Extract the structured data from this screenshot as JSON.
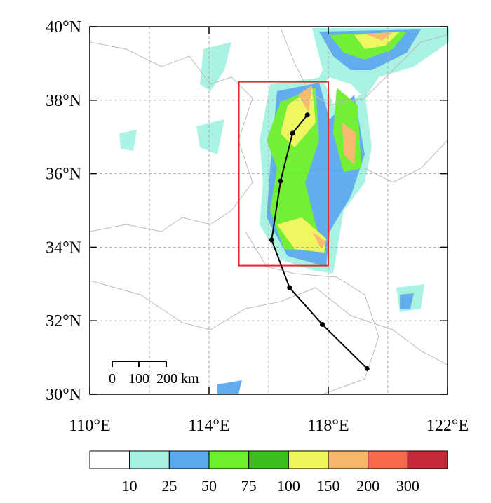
{
  "chart_data": {
    "type": "map",
    "xlim": [
      110,
      122
    ],
    "ylim": [
      30,
      40
    ],
    "xticks": [
      {
        "value": 110,
        "label": "110°E"
      },
      {
        "value": 114,
        "label": "114°E"
      },
      {
        "value": 118,
        "label": "118°E"
      },
      {
        "value": 122,
        "label": "122°E"
      }
    ],
    "yticks": [
      {
        "value": 30,
        "label": "30°N"
      },
      {
        "value": 32,
        "label": "32°N"
      },
      {
        "value": 34,
        "label": "34°N"
      },
      {
        "value": 36,
        "label": "36°N"
      },
      {
        "value": 38,
        "label": "38°N"
      },
      {
        "value": 40,
        "label": "40°N"
      }
    ],
    "xgrid": [
      112,
      114,
      116,
      118,
      120
    ],
    "grid": true,
    "box": {
      "lon": [
        115,
        118
      ],
      "lat": [
        33.5,
        38.5
      ],
      "color": "#e0282e"
    },
    "track": {
      "color": "#000000",
      "lon": [
        119.3,
        117.8,
        116.7,
        116.1,
        116.4,
        116.8,
        117.3
      ],
      "lat": [
        30.7,
        31.9,
        32.9,
        34.2,
        35.8,
        37.1,
        37.6
      ]
    },
    "scale_bar": {
      "labels": [
        "0",
        "100",
        "200 km"
      ]
    },
    "colorbar": {
      "levels": [
        10,
        25,
        50,
        75,
        100,
        150,
        200,
        300
      ],
      "colors": [
        "#ffffff",
        "#a6f2e0",
        "#5aa9ee",
        "#6cf02c",
        "#3cbf1e",
        "#eef65a",
        "#f7b768",
        "#f96a4a",
        "#c42a3a"
      ]
    }
  }
}
